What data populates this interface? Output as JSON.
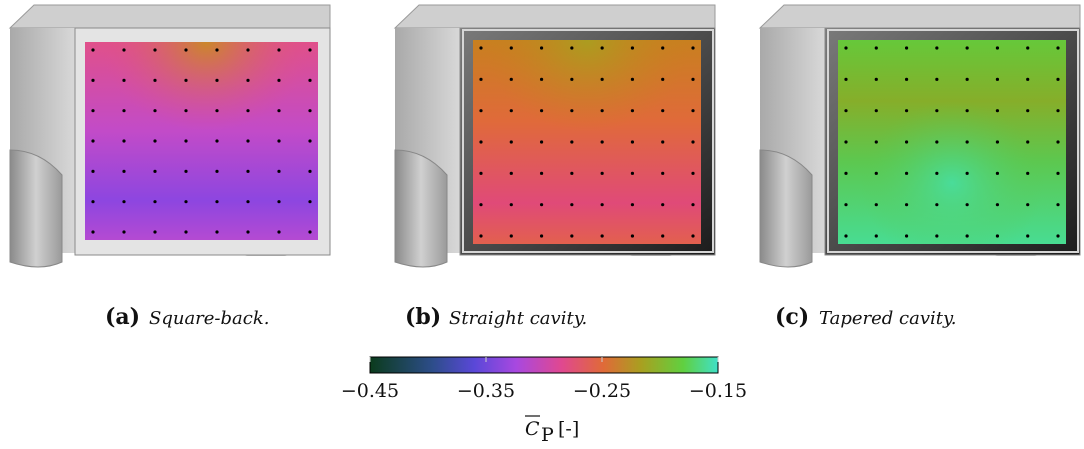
{
  "figure": {
    "panels": [
      {
        "tag": "(a)",
        "caption": "Square-back."
      },
      {
        "tag": "(b)",
        "caption": "Straight cavity."
      },
      {
        "tag": "(c)",
        "caption": "Tapered cavity."
      }
    ],
    "colorbar": {
      "range": [
        -0.45,
        -0.15
      ],
      "ticks": [
        {
          "value": -0.45,
          "label": "−0.45"
        },
        {
          "value": -0.35,
          "label": "−0.35"
        },
        {
          "value": -0.25,
          "label": "−0.25"
        },
        {
          "value": -0.15,
          "label": "−0.15"
        }
      ],
      "label": {
        "symbol": "C",
        "subscript": "P",
        "unit": "[-]"
      }
    }
  }
}
